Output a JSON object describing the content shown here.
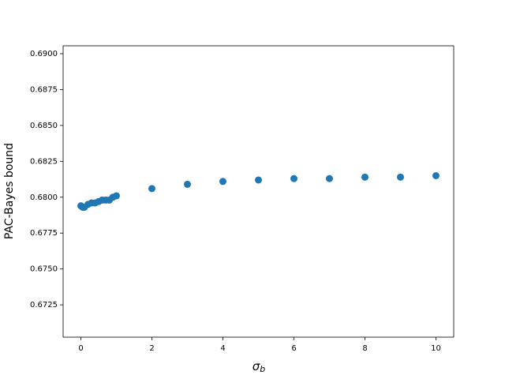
{
  "chart_data": {
    "type": "scatter",
    "x_label": {
      "symbol": "σ",
      "subscript": "b"
    },
    "y_label": "PAC-Bayes bound",
    "x": [
      0,
      0.05,
      0.1,
      0.2,
      0.3,
      0.4,
      0.5,
      0.6,
      0.7,
      0.8,
      0.9,
      1.0,
      2,
      3,
      4,
      5,
      6,
      7,
      8,
      9,
      10
    ],
    "series": [
      {
        "color": "#1f77b4",
        "values": [
          0.6794,
          0.6793,
          0.6793,
          0.6795,
          0.6796,
          0.6796,
          0.6797,
          0.6798,
          0.6798,
          0.6798,
          0.68,
          0.6801,
          0.6806,
          0.6809,
          0.6811,
          0.6812,
          0.6813,
          0.6813,
          0.6814,
          0.6814,
          0.6815
        ]
      }
    ],
    "xlim": [
      -0.5,
      10.5
    ],
    "xticks": [
      0,
      2,
      4,
      6,
      8,
      10
    ],
    "ylim": [
      0.67025,
      0.69055
    ],
    "yticks": [
      0.6725,
      {
        "value": 0.675,
        "label": "0.6750"
      },
      0.6775,
      {
        "value": 0.68,
        "label": "0.6800"
      },
      0.6825,
      {
        "value": 0.685,
        "label": "0.6850"
      },
      0.6875,
      {
        "value": 0.69,
        "label": "0.6900"
      }
    ]
  }
}
